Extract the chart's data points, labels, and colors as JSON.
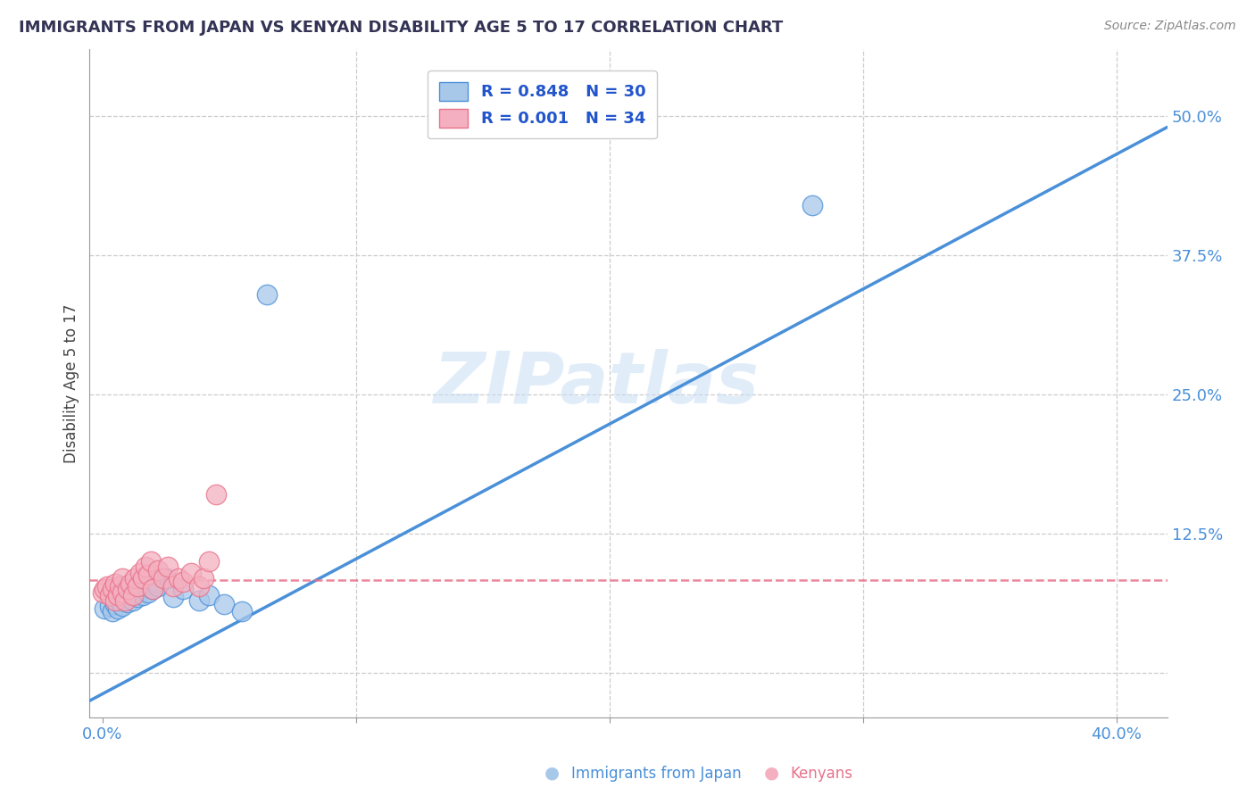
{
  "title": "IMMIGRANTS FROM JAPAN VS KENYAN DISABILITY AGE 5 TO 17 CORRELATION CHART",
  "source_text": "Source: ZipAtlas.com",
  "ylabel": "Disability Age 5 to 17",
  "watermark": "ZIPatlas",
  "x_ticks": [
    0.0,
    0.1,
    0.2,
    0.3,
    0.4
  ],
  "y_ticks": [
    0.0,
    0.125,
    0.25,
    0.375,
    0.5
  ],
  "xlim": [
    -0.005,
    0.42
  ],
  "ylim": [
    -0.04,
    0.56
  ],
  "blue_scatter_x": [
    0.001,
    0.003,
    0.004,
    0.005,
    0.006,
    0.007,
    0.008,
    0.009,
    0.01,
    0.011,
    0.012,
    0.013,
    0.014,
    0.015,
    0.016,
    0.017,
    0.018,
    0.019,
    0.02,
    0.021,
    0.022,
    0.025,
    0.028,
    0.032,
    0.038,
    0.042,
    0.048,
    0.055,
    0.065,
    0.28
  ],
  "blue_scatter_y": [
    0.058,
    0.06,
    0.055,
    0.062,
    0.058,
    0.065,
    0.06,
    0.068,
    0.063,
    0.07,
    0.065,
    0.072,
    0.068,
    0.075,
    0.07,
    0.078,
    0.072,
    0.08,
    0.075,
    0.082,
    0.078,
    0.085,
    0.068,
    0.075,
    0.065,
    0.07,
    0.062,
    0.055,
    0.34,
    0.42
  ],
  "pink_scatter_x": [
    0.0,
    0.001,
    0.002,
    0.003,
    0.004,
    0.005,
    0.005,
    0.006,
    0.007,
    0.008,
    0.008,
    0.009,
    0.01,
    0.011,
    0.012,
    0.013,
    0.014,
    0.015,
    0.016,
    0.017,
    0.018,
    0.019,
    0.02,
    0.022,
    0.024,
    0.026,
    0.028,
    0.03,
    0.032,
    0.035,
    0.038,
    0.04,
    0.042,
    0.045
  ],
  "pink_scatter_y": [
    0.072,
    0.075,
    0.078,
    0.07,
    0.075,
    0.065,
    0.08,
    0.07,
    0.078,
    0.072,
    0.085,
    0.065,
    0.075,
    0.08,
    0.07,
    0.085,
    0.078,
    0.09,
    0.085,
    0.095,
    0.088,
    0.1,
    0.075,
    0.092,
    0.085,
    0.095,
    0.078,
    0.085,
    0.082,
    0.09,
    0.078,
    0.085,
    0.1,
    0.16
  ],
  "blue_line_x": [
    -0.005,
    0.42
  ],
  "blue_line_y": [
    -0.025,
    0.49
  ],
  "pink_line_y": 0.083,
  "blue_color": "#4a90d9",
  "pink_color": "#e8728a",
  "blue_fill": "#a8c8ea",
  "pink_fill": "#f4b0c0",
  "grid_color": "#cccccc",
  "background_color": "#ffffff",
  "legend_R_color": "#2255cc",
  "legend_N_color": "#cc3333"
}
